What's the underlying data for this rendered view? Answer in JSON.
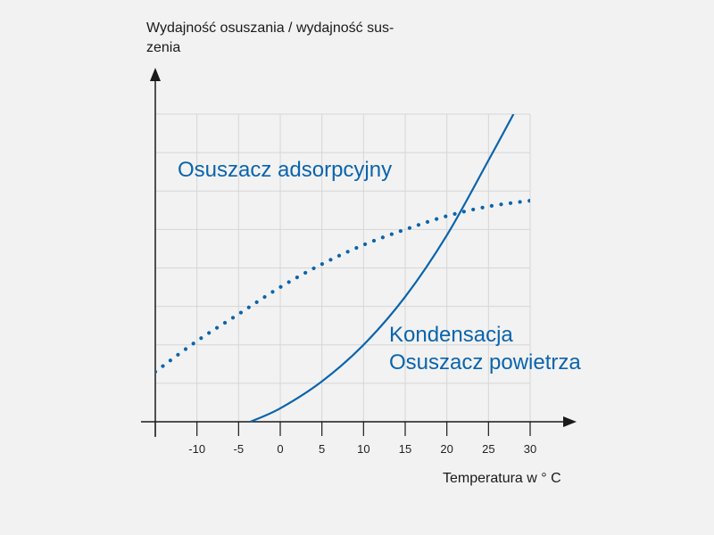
{
  "chart_data": {
    "type": "line",
    "title": "",
    "ylabel_lines": [
      "Wydajność osuszania / wydajność sus-",
      "zenia"
    ],
    "xlabel": "Temperatura w ° C",
    "x_ticks": [
      -10,
      -5,
      0,
      5,
      10,
      15,
      20,
      25,
      30
    ],
    "xlim": [
      -15,
      30
    ],
    "ylim": [
      0,
      8
    ],
    "grid": true,
    "colors": {
      "series": "#0a64ad",
      "axis": "#1a1a1a",
      "grid": "#d6d6d6",
      "background": "#f2f2f2"
    },
    "series": [
      {
        "name": "Osuszacz adsorpcyjny",
        "style": "dotted",
        "x": [
          -15,
          -10,
          -5,
          0,
          5,
          10,
          15,
          20,
          25,
          30
        ],
        "y": [
          1.3,
          2.1,
          2.8,
          3.5,
          4.1,
          4.6,
          5.0,
          5.35,
          5.6,
          5.75
        ]
      },
      {
        "name_lines": [
          "Kondensacja",
          "Osuszacz powietrza"
        ],
        "style": "solid",
        "x": [
          -3.6,
          0,
          5,
          10,
          15,
          20,
          25,
          28
        ],
        "y": [
          0,
          0.35,
          1.05,
          2.0,
          3.25,
          4.85,
          6.8,
          8.0
        ]
      }
    ]
  }
}
